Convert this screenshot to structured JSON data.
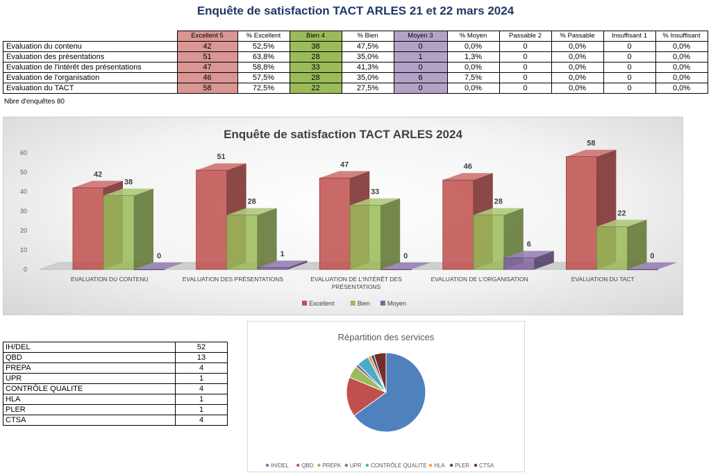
{
  "page_title": "Enquête de satisfaction TACT ARLES 21 et 22 mars 2024",
  "survey_table": {
    "headers": [
      "Excellent 5",
      "% Excellent",
      "Bien 4",
      "% Bien",
      "Moyen 3",
      "% Moyen",
      "Passable 2",
      "% Passable",
      "Insuffisant 1",
      "% Insuffisant"
    ],
    "rows": [
      {
        "label": "Evaluation du contenu",
        "cells": [
          "42",
          "52,5%",
          "38",
          "47,5%",
          "0",
          "0,0%",
          "0",
          "0,0%",
          "0",
          "0,0%"
        ]
      },
      {
        "label": "Evaluation des présentations",
        "cells": [
          "51",
          "63,8%",
          "28",
          "35,0%",
          "1",
          "1,3%",
          "0",
          "0,0%",
          "0",
          "0,0%"
        ]
      },
      {
        "label": "Evaluation de l'intérêt des présentations",
        "cells": [
          "47",
          "58,8%",
          "33",
          "41,3%",
          "0",
          "0,0%",
          "0",
          "0,0%",
          "0",
          "0,0%"
        ]
      },
      {
        "label": "Evaluation de l'organisation",
        "cells": [
          "46",
          "57,5%",
          "28",
          "35,0%",
          "6",
          "7,5%",
          "0",
          "0,0%",
          "0",
          "0,0%"
        ]
      },
      {
        "label": "Evaluation du TACT",
        "cells": [
          "58",
          "72,5%",
          "22",
          "27,5%",
          "0",
          "0,0%",
          "0",
          "0,0%",
          "0",
          "0,0%"
        ]
      }
    ]
  },
  "survey_count": "Nbre d'enquêtes 80",
  "services_table": [
    {
      "label": "IH/DEL",
      "value": "52"
    },
    {
      "label": "QBD",
      "value": "13"
    },
    {
      "label": "PREPA",
      "value": "4"
    },
    {
      "label": "UPR",
      "value": "1"
    },
    {
      "label": "CONTRÔLE QUALITE",
      "value": "4"
    },
    {
      "label": "HLA",
      "value": "1"
    },
    {
      "label": "PLER",
      "value": "1"
    },
    {
      "label": "CTSA",
      "value": "4"
    }
  ],
  "chart_data": [
    {
      "type": "bar",
      "title": "Enquête de satisfaction TACT ARLES 2024",
      "categories": [
        "EVALUATION DU CONTENU",
        "EVALUATION DES PRÉSENTATIONS",
        "EVALUATION DE L'INTÉRÊT DES PRÉSENTATIONS",
        "EVALUATION DE L'ORGANISATION",
        "EVALUATION DU TACT"
      ],
      "series": [
        {
          "name": "Excellent",
          "values": [
            42,
            51,
            47,
            46,
            58
          ],
          "color": "#c0504d"
        },
        {
          "name": "Bien",
          "values": [
            38,
            28,
            33,
            28,
            22
          ],
          "color": "#9bbb59"
        },
        {
          "name": "Moyen",
          "values": [
            0,
            1,
            0,
            6,
            0
          ],
          "color": "#8064a2"
        }
      ],
      "yticks": [
        "0",
        "10",
        "20",
        "30",
        "40",
        "50",
        "60"
      ],
      "ylim": [
        0,
        60
      ],
      "grid": false,
      "legend": "bottom",
      "style": "3d"
    },
    {
      "type": "pie",
      "title": "Répartition des services",
      "labels": [
        "IH/DEL",
        "QBD",
        "PREPA",
        "UPR",
        "CONTRÔLE QUALITE",
        "HLA",
        "PLER",
        "CTSA"
      ],
      "values": [
        52,
        13,
        4,
        1,
        4,
        1,
        1,
        4
      ],
      "colors": [
        "#4f81bd",
        "#c0504d",
        "#9bbb59",
        "#8064a2",
        "#4bacc6",
        "#f79646",
        "#2c4d75",
        "#772c2a"
      ],
      "legend": "bottom"
    }
  ]
}
